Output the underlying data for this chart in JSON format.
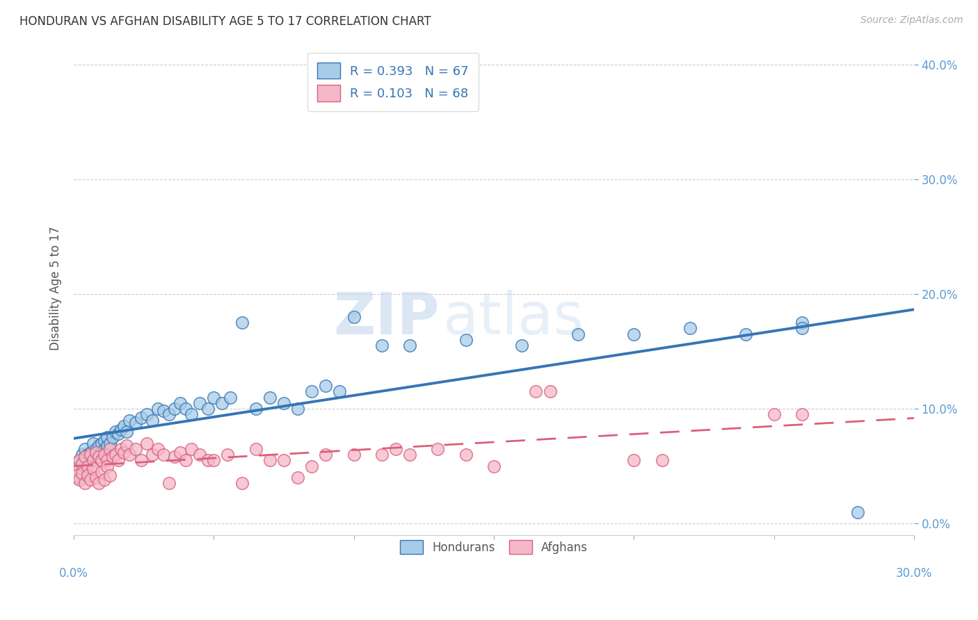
{
  "title": "HONDURAN VS AFGHAN DISABILITY AGE 5 TO 17 CORRELATION CHART",
  "source": "Source: ZipAtlas.com",
  "ylabel": "Disability Age 5 to 17",
  "xlim": [
    0.0,
    0.3
  ],
  "ylim": [
    -0.01,
    0.42
  ],
  "yticks": [
    0.0,
    0.1,
    0.2,
    0.3,
    0.4
  ],
  "blue_color": "#a8cce8",
  "pink_color": "#f5b8ca",
  "blue_line_color": "#3575b5",
  "pink_line_color": "#d9607a",
  "title_color": "#333333",
  "axis_label_color": "#5b9bd5",
  "watermark_zip": "ZIP",
  "watermark_atlas": "atlas",
  "legend_label1": "Hondurans",
  "legend_label2": "Afghans",
  "honduran_x": [
    0.001,
    0.002,
    0.002,
    0.003,
    0.003,
    0.004,
    0.004,
    0.005,
    0.005,
    0.006,
    0.006,
    0.007,
    0.007,
    0.008,
    0.008,
    0.009,
    0.009,
    0.01,
    0.01,
    0.011,
    0.011,
    0.012,
    0.012,
    0.013,
    0.014,
    0.015,
    0.016,
    0.017,
    0.018,
    0.019,
    0.02,
    0.022,
    0.024,
    0.026,
    0.028,
    0.03,
    0.032,
    0.034,
    0.036,
    0.038,
    0.04,
    0.042,
    0.045,
    0.048,
    0.05,
    0.053,
    0.056,
    0.06,
    0.065,
    0.07,
    0.075,
    0.08,
    0.085,
    0.09,
    0.095,
    0.1,
    0.11,
    0.12,
    0.14,
    0.16,
    0.18,
    0.2,
    0.22,
    0.24,
    0.26,
    0.26,
    0.28
  ],
  "honduran_y": [
    0.04,
    0.05,
    0.055,
    0.045,
    0.06,
    0.05,
    0.065,
    0.055,
    0.06,
    0.058,
    0.062,
    0.055,
    0.07,
    0.06,
    0.065,
    0.058,
    0.068,
    0.062,
    0.07,
    0.065,
    0.072,
    0.068,
    0.075,
    0.07,
    0.075,
    0.08,
    0.078,
    0.082,
    0.085,
    0.08,
    0.09,
    0.088,
    0.092,
    0.095,
    0.09,
    0.1,
    0.098,
    0.095,
    0.1,
    0.105,
    0.1,
    0.095,
    0.105,
    0.1,
    0.11,
    0.105,
    0.11,
    0.175,
    0.1,
    0.11,
    0.105,
    0.1,
    0.115,
    0.12,
    0.115,
    0.18,
    0.155,
    0.155,
    0.16,
    0.155,
    0.165,
    0.165,
    0.17,
    0.165,
    0.175,
    0.17,
    0.01
  ],
  "afghan_x": [
    0.001,
    0.001,
    0.002,
    0.002,
    0.003,
    0.003,
    0.004,
    0.004,
    0.005,
    0.005,
    0.006,
    0.006,
    0.007,
    0.007,
    0.008,
    0.008,
    0.009,
    0.009,
    0.01,
    0.01,
    0.011,
    0.011,
    0.012,
    0.012,
    0.013,
    0.013,
    0.014,
    0.015,
    0.016,
    0.017,
    0.018,
    0.019,
    0.02,
    0.022,
    0.024,
    0.026,
    0.028,
    0.03,
    0.032,
    0.034,
    0.036,
    0.038,
    0.04,
    0.042,
    0.045,
    0.048,
    0.05,
    0.055,
    0.06,
    0.065,
    0.07,
    0.075,
    0.08,
    0.085,
    0.09,
    0.1,
    0.11,
    0.115,
    0.12,
    0.13,
    0.14,
    0.15,
    0.165,
    0.17,
    0.2,
    0.21,
    0.25,
    0.26
  ],
  "afghan_y": [
    0.048,
    0.042,
    0.055,
    0.038,
    0.052,
    0.044,
    0.058,
    0.035,
    0.05,
    0.042,
    0.06,
    0.038,
    0.055,
    0.048,
    0.062,
    0.04,
    0.058,
    0.035,
    0.055,
    0.045,
    0.06,
    0.038,
    0.055,
    0.05,
    0.065,
    0.042,
    0.058,
    0.06,
    0.055,
    0.065,
    0.062,
    0.068,
    0.06,
    0.065,
    0.055,
    0.07,
    0.06,
    0.065,
    0.06,
    0.035,
    0.058,
    0.062,
    0.055,
    0.065,
    0.06,
    0.055,
    0.055,
    0.06,
    0.035,
    0.065,
    0.055,
    0.055,
    0.04,
    0.05,
    0.06,
    0.06,
    0.06,
    0.065,
    0.06,
    0.065,
    0.06,
    0.05,
    0.115,
    0.115,
    0.055,
    0.055,
    0.095,
    0.095
  ]
}
